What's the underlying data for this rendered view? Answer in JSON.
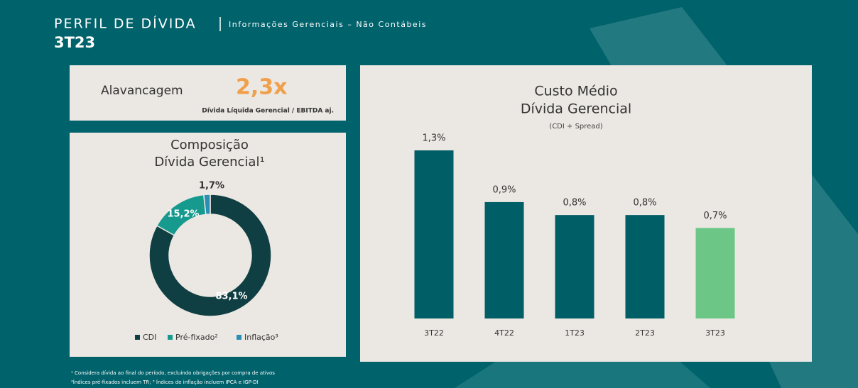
{
  "header": {
    "title": "PERFIL DE DÍVIDA",
    "subtitle": "Informações Gerenciais – Não Contábeis",
    "period": "3T23"
  },
  "leverage": {
    "label": "Alavancagem",
    "value": "2,3x",
    "note": "Dívida Líquida Gerencial / EBITDA aj."
  },
  "chart_data": [
    {
      "type": "donut",
      "title": [
        "Composição",
        "Dívida Gerencial¹"
      ],
      "categories": [
        "CDI",
        "Pré-fixado²",
        "Inflação³"
      ],
      "values": [
        83.1,
        15.2,
        1.7
      ],
      "value_labels": [
        "83,1%",
        "15,2%",
        "1,7%"
      ],
      "colors": [
        "#0f3f43",
        "#169a8d",
        "#2b8fb5"
      ],
      "legend": "bottom"
    },
    {
      "type": "bar",
      "title": [
        "Custo Médio",
        "Dívida Gerencial"
      ],
      "subtitle": "(CDI + Spread)",
      "categories": [
        "3T22",
        "4T22",
        "1T23",
        "2T23",
        "3T23"
      ],
      "values": [
        1.3,
        0.9,
        0.8,
        0.8,
        0.7
      ],
      "value_labels": [
        "1,3%",
        "0,9%",
        "0,8%",
        "0,8%",
        "0,7%"
      ],
      "colors": [
        "#005e66",
        "#005e66",
        "#005e66",
        "#005e66",
        "#6cc787"
      ]
    }
  ],
  "footnotes": [
    "¹ Considera dívida ao final do período, excluindo obrigações por compra de ativos",
    "²Índices pré-fixados incluem TR; ³ Índices de inflação incluem IPCA e IGP-DI"
  ]
}
